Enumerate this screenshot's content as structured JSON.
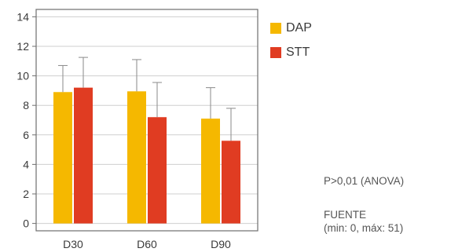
{
  "chart_data": {
    "type": "bar",
    "categories": [
      "D30",
      "D60",
      "D90"
    ],
    "series": [
      {
        "name": "DAP",
        "color": "#f5b800",
        "values": [
          8.9,
          8.95,
          7.1
        ],
        "errors": [
          1.8,
          2.15,
          2.1
        ]
      },
      {
        "name": "STT",
        "color": "#e03c22",
        "values": [
          9.2,
          7.2,
          5.6
        ],
        "errors": [
          2.05,
          2.35,
          2.2
        ]
      }
    ],
    "ylim": [
      -0.5,
      14.5
    ],
    "yticks": [
      0,
      2,
      4,
      6,
      8,
      10,
      12,
      14
    ],
    "ytick_labels": [
      "0",
      "2",
      "4",
      "6",
      "8",
      "10",
      "12",
      "14"
    ],
    "grid": true,
    "legend_position": "right"
  },
  "annotations": {
    "stat": "P>0,01 (ANOVA)",
    "source_title": "FUENTE",
    "source_range": "(min: 0, máx: 51)"
  }
}
